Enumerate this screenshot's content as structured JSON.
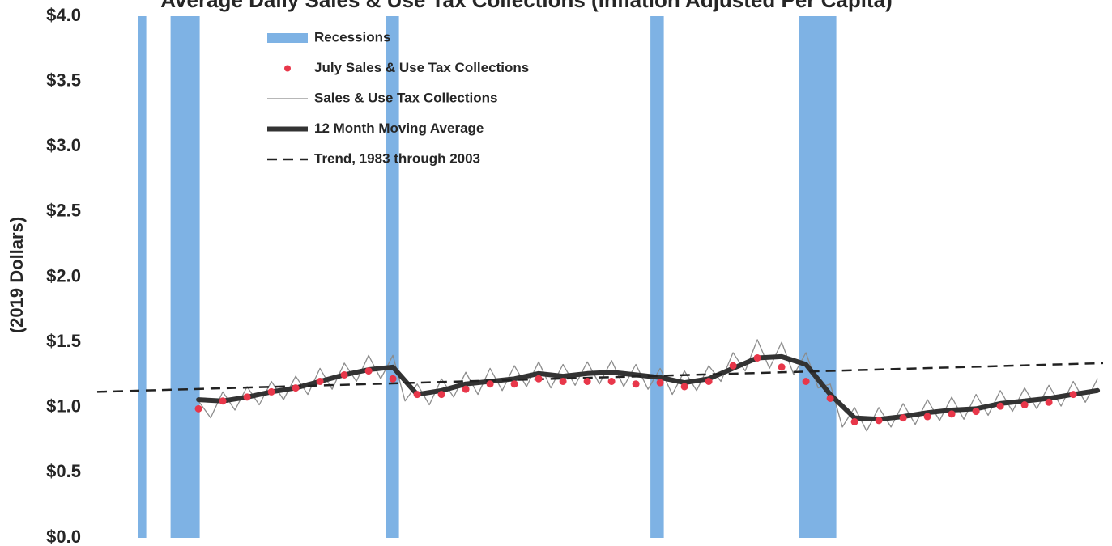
{
  "chart_data": {
    "type": "line",
    "title": "Average Daily Sales & Use Tax Collections (Inflation Adjusted Per Capita)",
    "y_label": "(2019 Dollars)",
    "xlim": [
      1978.33,
      2019.73
    ],
    "ylim": [
      0,
      4
    ],
    "yticks": [
      {
        "value": 0,
        "label": "$0.0"
      },
      {
        "value": 0.5,
        "label": "$0.5"
      },
      {
        "value": 1,
        "label": "$1.0"
      },
      {
        "value": 1.5,
        "label": "$1.5"
      },
      {
        "value": 2,
        "label": "$2.0"
      },
      {
        "value": 2.5,
        "label": "$2.5"
      },
      {
        "value": 3,
        "label": "$3.0"
      },
      {
        "value": 3.5,
        "label": "$3.5"
      },
      {
        "value": 4,
        "label": "$4.0"
      }
    ],
    "recessions": {
      "name": "Recessions",
      "color": "#7eb2e4",
      "ranges": [
        [
          1980.0,
          1980.35
        ],
        [
          1981.35,
          1982.55
        ],
        [
          1990.2,
          1990.75
        ],
        [
          2001.1,
          2001.65
        ],
        [
          2007.2,
          2008.75
        ]
      ]
    },
    "series": [
      {
        "name": "July Sales & Use Tax Collections",
        "style": "markers",
        "color": "#e8374a",
        "x": [
          1982.5,
          1983.5,
          1984.5,
          1985.5,
          1986.5,
          1987.5,
          1988.5,
          1989.5,
          1990.5,
          1991.5,
          1992.5,
          1993.5,
          1994.5,
          1995.5,
          1996.5,
          1997.5,
          1998.5,
          1999.5,
          2000.5,
          2001.5,
          2002.5,
          2003.5,
          2004.5,
          2005.5,
          2006.5,
          2007.5,
          2008.5,
          2009.5,
          2010.5,
          2011.5,
          2012.5,
          2013.5,
          2014.5,
          2015.5,
          2016.5,
          2017.5,
          2018.5
        ],
        "values": [
          0.99,
          1.05,
          1.08,
          1.12,
          1.15,
          1.2,
          1.25,
          1.28,
          1.22,
          1.1,
          1.1,
          1.14,
          1.18,
          1.18,
          1.22,
          1.2,
          1.2,
          1.2,
          1.18,
          1.19,
          1.16,
          1.2,
          1.32,
          1.38,
          1.31,
          1.2,
          1.07,
          0.89,
          0.9,
          0.92,
          0.93,
          0.95,
          0.97,
          1.01,
          1.02,
          1.04,
          1.1
        ]
      },
      {
        "name": "Sales & Use Tax Collections",
        "style": "thin",
        "color": "#8c8c8c",
        "x": [
          1982.5,
          1983,
          1983.5,
          1984,
          1984.5,
          1985,
          1985.5,
          1986,
          1986.5,
          1987,
          1987.5,
          1988,
          1988.5,
          1989,
          1989.5,
          1990,
          1990.5,
          1991,
          1991.5,
          1992,
          1992.5,
          1993,
          1993.5,
          1994,
          1994.5,
          1995,
          1995.5,
          1996,
          1996.5,
          1997,
          1997.5,
          1998,
          1998.5,
          1999,
          1999.5,
          2000,
          2000.5,
          2001,
          2001.5,
          2002,
          2002.5,
          2003,
          2003.5,
          2004,
          2004.5,
          2005,
          2005.5,
          2006,
          2006.5,
          2007,
          2007.5,
          2008,
          2008.5,
          2009,
          2009.5,
          2010,
          2010.5,
          2011,
          2011.5,
          2012,
          2012.5,
          2013,
          2013.5,
          2014,
          2014.5,
          2015,
          2015.5,
          2016,
          2016.5,
          2017,
          2017.5,
          2018,
          2018.5,
          2019,
          2019.5
        ],
        "values": [
          1.05,
          0.92,
          1.12,
          0.98,
          1.16,
          1.02,
          1.2,
          1.06,
          1.24,
          1.1,
          1.3,
          1.14,
          1.34,
          1.2,
          1.4,
          1.22,
          1.4,
          1.05,
          1.18,
          1.02,
          1.22,
          1.08,
          1.27,
          1.1,
          1.3,
          1.13,
          1.32,
          1.16,
          1.35,
          1.15,
          1.33,
          1.17,
          1.35,
          1.18,
          1.36,
          1.16,
          1.33,
          1.14,
          1.3,
          1.1,
          1.28,
          1.13,
          1.32,
          1.2,
          1.42,
          1.28,
          1.52,
          1.3,
          1.5,
          1.25,
          1.42,
          1.15,
          1.18,
          0.85,
          1.0,
          0.82,
          1.0,
          0.85,
          1.03,
          0.87,
          1.06,
          0.9,
          1.08,
          0.91,
          1.1,
          0.94,
          1.13,
          0.97,
          1.15,
          0.99,
          1.17,
          1.01,
          1.2,
          1.04,
          1.22
        ]
      },
      {
        "name": "12 Month Moving Average",
        "style": "thick",
        "color": "#333333",
        "x": [
          1982.5,
          1983.5,
          1984.5,
          1985.5,
          1986.5,
          1987.5,
          1988.5,
          1989.5,
          1990.5,
          1991.5,
          1992.5,
          1993.5,
          1994.5,
          1995.5,
          1996.5,
          1997.5,
          1998.5,
          1999.5,
          2000.5,
          2001.5,
          2002.5,
          2003.5,
          2004.5,
          2005.5,
          2006.5,
          2007.5,
          2008.5,
          2009.5,
          2010.5,
          2011.5,
          2012.5,
          2013.5,
          2014.5,
          2015.5,
          2016.5,
          2017.5,
          2018.5,
          2019.5
        ],
        "values": [
          1.06,
          1.05,
          1.08,
          1.12,
          1.15,
          1.2,
          1.25,
          1.29,
          1.31,
          1.1,
          1.13,
          1.18,
          1.2,
          1.22,
          1.26,
          1.24,
          1.26,
          1.27,
          1.25,
          1.23,
          1.19,
          1.22,
          1.3,
          1.38,
          1.39,
          1.33,
          1.1,
          0.92,
          0.91,
          0.93,
          0.96,
          0.98,
          0.99,
          1.03,
          1.05,
          1.07,
          1.1,
          1.13
        ]
      },
      {
        "name": "Trend, 1983 through 2003",
        "style": "dashed",
        "color": "#222222",
        "x": [
          1978.33,
          2019.73
        ],
        "values": [
          1.12,
          1.34
        ]
      }
    ]
  }
}
